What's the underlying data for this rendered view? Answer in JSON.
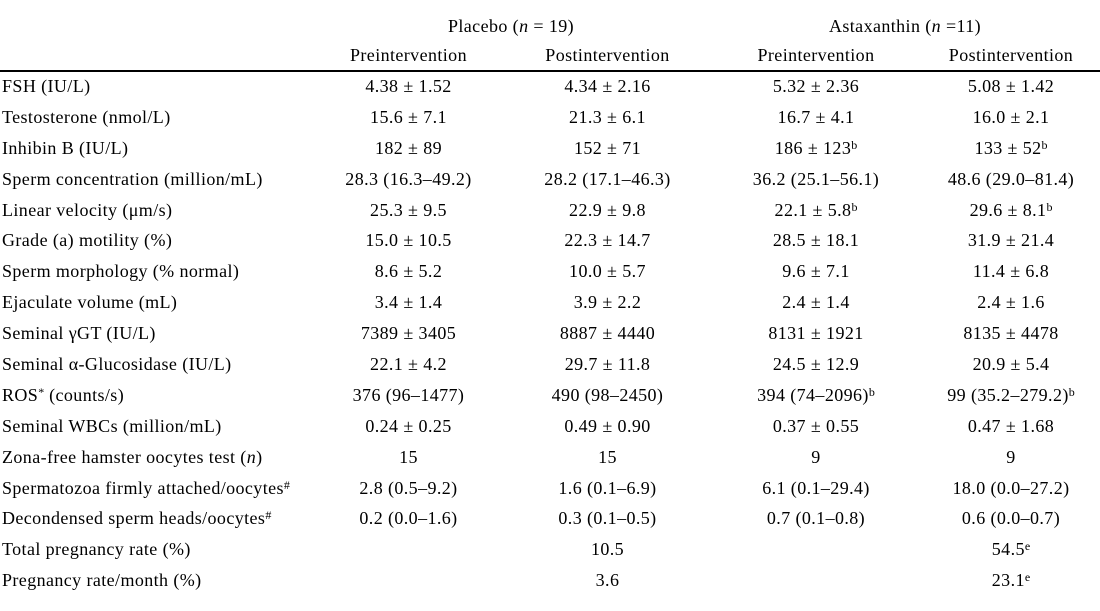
{
  "table": {
    "group_headers": [
      {
        "name": "placebo",
        "parts": [
          {
            "t": "Placebo ("
          },
          {
            "i": "n"
          },
          {
            "t": " = 19)"
          }
        ]
      },
      {
        "name": "astaxanthin",
        "parts": [
          {
            "t": "Astaxanthin ("
          },
          {
            "i": "n"
          },
          {
            "t": " =11)"
          }
        ]
      }
    ],
    "column_headers": [
      "Preintervention",
      "Postintervention",
      "Preintervention",
      "Postintervention"
    ],
    "rows": [
      {
        "label": [
          {
            "t": "FSH (IU/L)"
          }
        ],
        "values": [
          [
            {
              "t": "4.38 ± 1.52"
            }
          ],
          [
            {
              "t": "4.34 ± 2.16"
            }
          ],
          [
            {
              "t": "5.32 ± 2.36"
            }
          ],
          [
            {
              "t": "5.08 ± 1.42"
            }
          ]
        ]
      },
      {
        "label": [
          {
            "t": "Testosterone (nmol/L)"
          }
        ],
        "values": [
          [
            {
              "t": "15.6 ± 7.1"
            }
          ],
          [
            {
              "t": "21.3 ± 6.1"
            }
          ],
          [
            {
              "t": "16.7 ± 4.1"
            }
          ],
          [
            {
              "t": "16.0 ± 2.1"
            }
          ]
        ]
      },
      {
        "label": [
          {
            "t": "Inhibin B (IU/L)"
          }
        ],
        "values": [
          [
            {
              "t": "182 ± 89"
            }
          ],
          [
            {
              "t": "152 ± 71"
            }
          ],
          [
            {
              "t": "186 ± 123"
            },
            {
              "sup": "b"
            }
          ],
          [
            {
              "t": "133 ± 52"
            },
            {
              "sup": "b"
            }
          ]
        ]
      },
      {
        "label": [
          {
            "t": "Sperm concentration (million/mL)"
          }
        ],
        "values": [
          [
            {
              "t": "28.3 (16.3–49.2)"
            }
          ],
          [
            {
              "t": "28.2 (17.1–46.3)"
            }
          ],
          [
            {
              "t": "36.2 (25.1–56.1)"
            }
          ],
          [
            {
              "t": "48.6 (29.0–81.4)"
            }
          ]
        ]
      },
      {
        "label": [
          {
            "t": "Linear velocity (μm/s)"
          }
        ],
        "values": [
          [
            {
              "t": "25.3 ± 9.5"
            }
          ],
          [
            {
              "t": "22.9 ± 9.8"
            }
          ],
          [
            {
              "t": "22.1 ± 5.8"
            },
            {
              "sup": "b"
            }
          ],
          [
            {
              "t": "29.6 ± 8.1"
            },
            {
              "sup": "b"
            }
          ]
        ]
      },
      {
        "label": [
          {
            "t": "Grade (a) motility (%)"
          }
        ],
        "values": [
          [
            {
              "t": "15.0 ± 10.5"
            }
          ],
          [
            {
              "t": "22.3 ± 14.7"
            }
          ],
          [
            {
              "t": "28.5 ± 18.1"
            }
          ],
          [
            {
              "t": "31.9 ± 21.4"
            }
          ]
        ]
      },
      {
        "label": [
          {
            "t": "Sperm morphology (% normal)"
          }
        ],
        "values": [
          [
            {
              "t": "8.6 ± 5.2"
            }
          ],
          [
            {
              "t": "10.0 ± 5.7"
            }
          ],
          [
            {
              "t": "9.6 ± 7.1"
            }
          ],
          [
            {
              "t": "11.4 ± 6.8"
            }
          ]
        ]
      },
      {
        "label": [
          {
            "t": "Ejaculate volume (mL)"
          }
        ],
        "values": [
          [
            {
              "t": "3.4 ± 1.4"
            }
          ],
          [
            {
              "t": "3.9 ± 2.2"
            }
          ],
          [
            {
              "t": "2.4 ± 1.4"
            }
          ],
          [
            {
              "t": "2.4 ± 1.6"
            }
          ]
        ]
      },
      {
        "label": [
          {
            "t": "Seminal γGT (IU/L)"
          }
        ],
        "values": [
          [
            {
              "t": "7389 ± 3405"
            }
          ],
          [
            {
              "t": "8887 ± 4440"
            }
          ],
          [
            {
              "t": "8131 ± 1921"
            }
          ],
          [
            {
              "t": "8135 ± 4478"
            }
          ]
        ]
      },
      {
        "label": [
          {
            "t": "Seminal α-Glucosidase (IU/L)"
          }
        ],
        "values": [
          [
            {
              "t": "22.1 ± 4.2"
            }
          ],
          [
            {
              "t": "29.7 ± 11.8"
            }
          ],
          [
            {
              "t": "24.5 ± 12.9"
            }
          ],
          [
            {
              "t": "20.9 ± 5.4"
            }
          ]
        ]
      },
      {
        "label": [
          {
            "t": "ROS"
          },
          {
            "sup": "*"
          },
          {
            "t": " (counts/s)"
          }
        ],
        "values": [
          [
            {
              "t": "376 (96–1477)"
            }
          ],
          [
            {
              "t": "490 (98–2450)"
            }
          ],
          [
            {
              "t": "394 (74–2096)"
            },
            {
              "sup": "b"
            }
          ],
          [
            {
              "t": "99 (35.2–279.2)"
            },
            {
              "sup": "b"
            }
          ]
        ]
      },
      {
        "label": [
          {
            "t": "Seminal WBCs (million/mL)"
          }
        ],
        "values": [
          [
            {
              "t": "0.24 ± 0.25"
            }
          ],
          [
            {
              "t": "0.49 ± 0.90"
            }
          ],
          [
            {
              "t": "0.37 ± 0.55"
            }
          ],
          [
            {
              "t": "0.47 ± 1.68"
            }
          ]
        ]
      },
      {
        "label": [
          {
            "t": "Zona-free hamster oocytes test ("
          },
          {
            "i": "n"
          },
          {
            "t": ")"
          }
        ],
        "values": [
          [
            {
              "t": "15"
            }
          ],
          [
            {
              "t": "15"
            }
          ],
          [
            {
              "t": "9"
            }
          ],
          [
            {
              "t": "9"
            }
          ]
        ]
      },
      {
        "label": [
          {
            "t": "Spermatozoa firmly attached/oocytes"
          },
          {
            "sup": "#"
          }
        ],
        "values": [
          [
            {
              "t": "2.8 (0.5–9.2)"
            }
          ],
          [
            {
              "t": "1.6 (0.1–6.9)"
            }
          ],
          [
            {
              "t": "6.1 (0.1–29.4)"
            }
          ],
          [
            {
              "t": "18.0 (0.0–27.2)"
            }
          ]
        ]
      },
      {
        "label": [
          {
            "t": "Decondensed sperm heads/oocytes"
          },
          {
            "sup": "#"
          }
        ],
        "values": [
          [
            {
              "t": "0.2 (0.0–1.6)"
            }
          ],
          [
            {
              "t": "0.3 (0.1–0.5)"
            }
          ],
          [
            {
              "t": "0.7 (0.1–0.8)"
            }
          ],
          [
            {
              "t": "0.6 (0.0–0.7)"
            }
          ]
        ]
      },
      {
        "label": [
          {
            "t": "Total pregnancy rate (%)"
          }
        ],
        "values": [
          [],
          [
            {
              "t": "10.5"
            }
          ],
          [],
          [
            {
              "t": "54.5"
            },
            {
              "sup": "e"
            }
          ]
        ]
      },
      {
        "label": [
          {
            "t": "Pregnancy rate/month (%)"
          }
        ],
        "values": [
          [],
          [
            {
              "t": "3.6"
            }
          ],
          [],
          [
            {
              "t": "23.1"
            },
            {
              "sup": "e"
            }
          ]
        ]
      }
    ]
  }
}
